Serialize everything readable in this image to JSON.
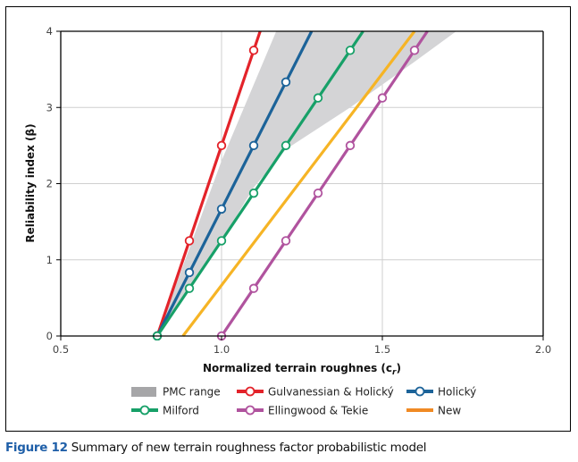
{
  "caption": {
    "figure_number": "Figure 12",
    "text": " Summary of new terrain roughness factor probabilistic model"
  },
  "chart_data": {
    "type": "line",
    "title": "",
    "xlabel": "Normalized terrain roughnes (c",
    "xlabel_subscript": "r",
    "xlabel_suffix": ")",
    "ylabel": "Reliability index (β)",
    "xlim": [
      0.5,
      2.0
    ],
    "ylim": [
      0,
      4
    ],
    "xticks": [
      0.5,
      1.0,
      1.5,
      2.0
    ],
    "xtick_labels": [
      "0.5",
      "1.0",
      "1.5",
      "2.0"
    ],
    "yticks": [
      0,
      1,
      2,
      3,
      4
    ],
    "ytick_labels": [
      "0",
      "1",
      "2",
      "3",
      "4"
    ],
    "grid": true,
    "legend_position": "bottom",
    "band": {
      "name": "PMC range",
      "color": "#d4d4d6",
      "legend_color": "#a6a6a8",
      "upper_edge": [
        [
          0.8,
          0
        ],
        [
          1.0,
          2.3
        ],
        [
          1.17,
          4
        ]
      ],
      "lower_edge": [
        [
          0.8,
          0
        ],
        [
          1.0,
          1.25
        ],
        [
          1.1,
          1.95
        ],
        [
          1.2,
          2.45
        ],
        [
          1.4,
          3.0
        ],
        [
          1.6,
          3.6
        ],
        [
          1.73,
          4
        ]
      ]
    },
    "series": [
      {
        "name": "Gulvanessian & Holický",
        "color": "#e3232a",
        "markers": true,
        "line": [
          [
            0.8,
            0
          ],
          [
            1.12,
            4
          ]
        ],
        "points": [
          [
            0.8,
            0
          ],
          [
            0.9,
            1.25
          ],
          [
            1.0,
            2.5
          ],
          [
            1.1,
            3.75
          ]
        ]
      },
      {
        "name": "Holický",
        "color": "#1c6399",
        "markers": true,
        "line": [
          [
            0.8,
            0
          ],
          [
            1.28,
            4
          ]
        ],
        "points": [
          [
            0.8,
            0
          ],
          [
            0.9,
            0.833
          ],
          [
            1.0,
            1.667
          ],
          [
            1.1,
            2.5
          ],
          [
            1.2,
            3.333
          ]
        ]
      },
      {
        "name": "Milford",
        "color": "#17a068",
        "markers": true,
        "line": [
          [
            0.8,
            0
          ],
          [
            1.44,
            4
          ]
        ],
        "points": [
          [
            0.8,
            0
          ],
          [
            0.9,
            0.625
          ],
          [
            1.0,
            1.25
          ],
          [
            1.1,
            1.875
          ],
          [
            1.2,
            2.5
          ],
          [
            1.3,
            3.125
          ],
          [
            1.4,
            3.75
          ]
        ]
      },
      {
        "name": "Ellingwood & Tekie",
        "color": "#b0539e",
        "markers": true,
        "line": [
          [
            1.0,
            0
          ],
          [
            1.64,
            4
          ]
        ],
        "points": [
          [
            1.0,
            0
          ],
          [
            1.1,
            0.625
          ],
          [
            1.2,
            1.25
          ],
          [
            1.3,
            1.875
          ],
          [
            1.4,
            2.5
          ],
          [
            1.5,
            3.125
          ],
          [
            1.6,
            3.75
          ]
        ]
      },
      {
        "name": "New",
        "color": "#f6b425",
        "legend_color": "#f08a24",
        "markers": false,
        "line": [
          [
            0.88,
            0
          ],
          [
            1.6,
            4
          ]
        ],
        "points": []
      }
    ],
    "legend": [
      {
        "label": "PMC range",
        "kind": "band"
      },
      {
        "label": "Gulvanessian & Holický",
        "kind": "series",
        "series_index": 0
      },
      {
        "label": "Holický",
        "kind": "series",
        "series_index": 1
      },
      {
        "label": "Milford",
        "kind": "series",
        "series_index": 2
      },
      {
        "label": "Ellingwood & Tekie",
        "kind": "series",
        "series_index": 3
      },
      {
        "label": "New",
        "kind": "series",
        "series_index": 4
      }
    ]
  }
}
